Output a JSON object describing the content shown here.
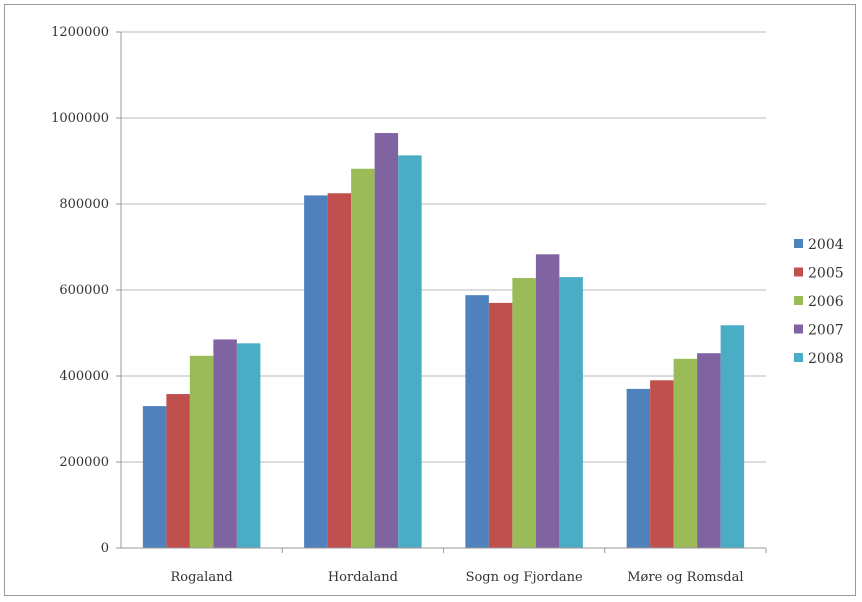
{
  "chart_data": {
    "type": "bar",
    "title": "",
    "xlabel": "",
    "ylabel": "",
    "ylim": [
      0,
      1200000
    ],
    "yticks": [
      0,
      200000,
      400000,
      600000,
      800000,
      1000000,
      1200000
    ],
    "ytick_labels": [
      "0",
      "200000",
      "400000",
      "600000",
      "800000",
      "1000000",
      "1200000"
    ],
    "grid": "horizontal",
    "legend_position": "right",
    "categories": [
      "Rogaland",
      "Hordaland",
      "Sogn og Fjordane",
      "Møre og Romsdal"
    ],
    "series": [
      {
        "name": "2004",
        "color": "#4f81bd",
        "values": [
          330000,
          820000,
          588000,
          370000
        ]
      },
      {
        "name": "2005",
        "color": "#c0504d",
        "values": [
          358000,
          825000,
          570000,
          390000
        ]
      },
      {
        "name": "2006",
        "color": "#9bbb59",
        "values": [
          447000,
          882000,
          628000,
          440000
        ]
      },
      {
        "name": "2007",
        "color": "#8064a2",
        "values": [
          485000,
          965000,
          683000,
          453000
        ]
      },
      {
        "name": "2008",
        "color": "#4bacc6",
        "values": [
          476000,
          913000,
          630000,
          518000
        ]
      }
    ]
  }
}
